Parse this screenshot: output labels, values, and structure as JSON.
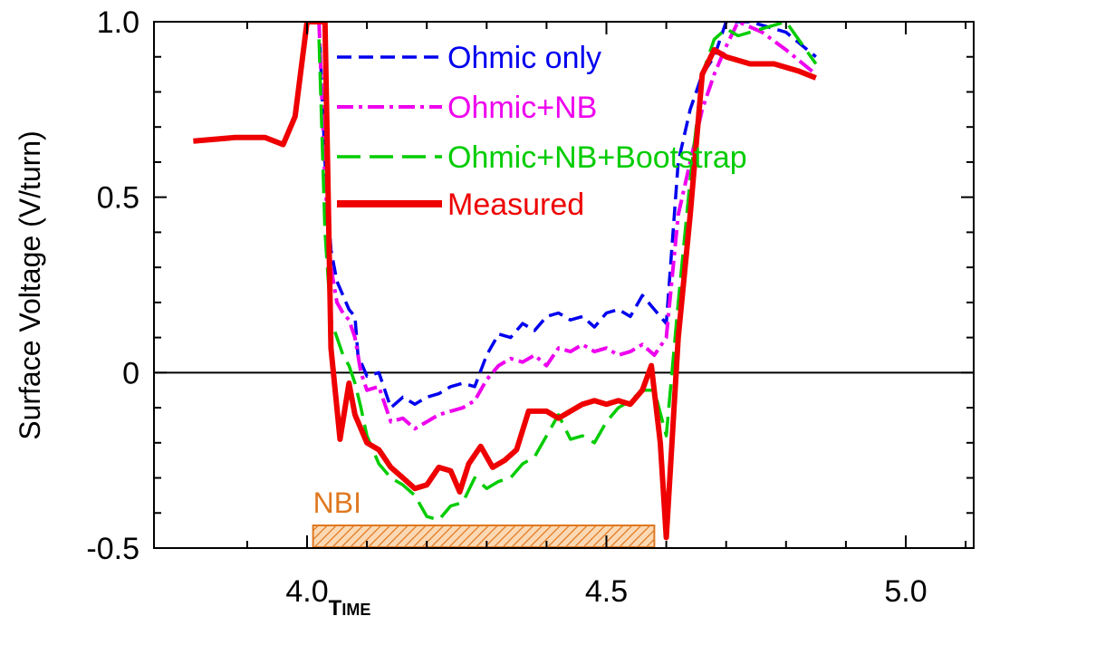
{
  "chart_data": {
    "type": "line",
    "title": "",
    "xlabel": "TIME",
    "ylabel": "Surface Voltage (V/turn)",
    "xlim": [
      3.81,
      5.0
    ],
    "ylim": [
      -0.5,
      1.0
    ],
    "x_ticks": [
      {
        "value": 4.0,
        "label": "4.0"
      },
      {
        "value": 4.5,
        "label": "4.5"
      },
      {
        "value": 5.0,
        "label": "5.0"
      }
    ],
    "y_ticks": [
      {
        "value": 1.0,
        "label": "1.0"
      },
      {
        "value": 0.5,
        "label": "0.5"
      },
      {
        "value": 0.0,
        "label": "0"
      },
      {
        "value": -0.5,
        "label": "-0.5"
      }
    ],
    "zero_line": true,
    "grid": false,
    "legend_position": "top-center",
    "series": [
      {
        "name": "Ohmic only",
        "color": "#0000ee",
        "style": "dash",
        "points": [
          [
            4.02,
            1.0
          ],
          [
            4.03,
            0.6
          ],
          [
            4.04,
            0.35
          ],
          [
            4.05,
            0.26
          ],
          [
            4.06,
            0.22
          ],
          [
            4.07,
            0.18
          ],
          [
            4.08,
            0.16
          ],
          [
            4.085,
            0.05
          ],
          [
            4.1,
            -0.01
          ],
          [
            4.12,
            0.0
          ],
          [
            4.14,
            -0.1
          ],
          [
            4.16,
            -0.07
          ],
          [
            4.18,
            -0.09
          ],
          [
            4.2,
            -0.07
          ],
          [
            4.22,
            -0.06
          ],
          [
            4.24,
            -0.04
          ],
          [
            4.26,
            -0.03
          ],
          [
            4.28,
            -0.04
          ],
          [
            4.3,
            0.05
          ],
          [
            4.32,
            0.11
          ],
          [
            4.34,
            0.1
          ],
          [
            4.36,
            0.14
          ],
          [
            4.38,
            0.12
          ],
          [
            4.4,
            0.16
          ],
          [
            4.42,
            0.17
          ],
          [
            4.44,
            0.15
          ],
          [
            4.46,
            0.16
          ],
          [
            4.48,
            0.13
          ],
          [
            4.5,
            0.17
          ],
          [
            4.52,
            0.18
          ],
          [
            4.54,
            0.16
          ],
          [
            4.56,
            0.22
          ],
          [
            4.58,
            0.18
          ],
          [
            4.6,
            0.14
          ],
          [
            4.62,
            0.6
          ],
          [
            4.64,
            0.75
          ],
          [
            4.66,
            0.85
          ],
          [
            4.68,
            0.9
          ],
          [
            4.7,
            1.0
          ],
          [
            4.74,
            1.0
          ],
          [
            4.8,
            0.97
          ],
          [
            4.85,
            0.9
          ]
        ]
      },
      {
        "name": "Ohmic+NB",
        "color": "#ee00ee",
        "style": "dash-dot",
        "points": [
          [
            4.02,
            1.0
          ],
          [
            4.03,
            0.55
          ],
          [
            4.04,
            0.3
          ],
          [
            4.05,
            0.2
          ],
          [
            4.06,
            0.17
          ],
          [
            4.07,
            0.15
          ],
          [
            4.08,
            0.1
          ],
          [
            4.09,
            0.0
          ],
          [
            4.1,
            -0.05
          ],
          [
            4.12,
            -0.04
          ],
          [
            4.14,
            -0.14
          ],
          [
            4.16,
            -0.13
          ],
          [
            4.18,
            -0.16
          ],
          [
            4.2,
            -0.14
          ],
          [
            4.22,
            -0.12
          ],
          [
            4.24,
            -0.11
          ],
          [
            4.26,
            -0.1
          ],
          [
            4.28,
            -0.08
          ],
          [
            4.3,
            -0.02
          ],
          [
            4.32,
            0.02
          ],
          [
            4.34,
            0.04
          ],
          [
            4.36,
            0.03
          ],
          [
            4.38,
            0.05
          ],
          [
            4.4,
            0.02
          ],
          [
            4.42,
            0.07
          ],
          [
            4.44,
            0.06
          ],
          [
            4.46,
            0.08
          ],
          [
            4.48,
            0.06
          ],
          [
            4.5,
            0.07
          ],
          [
            4.52,
            0.05
          ],
          [
            4.54,
            0.06
          ],
          [
            4.56,
            0.08
          ],
          [
            4.58,
            0.05
          ],
          [
            4.6,
            0.1
          ],
          [
            4.62,
            0.45
          ],
          [
            4.64,
            0.6
          ],
          [
            4.66,
            0.75
          ],
          [
            4.68,
            0.85
          ],
          [
            4.7,
            0.93
          ],
          [
            4.72,
            1.0
          ],
          [
            4.76,
            0.97
          ],
          [
            4.8,
            0.92
          ],
          [
            4.85,
            0.85
          ]
        ]
      },
      {
        "name": "Ohmic+NB+Bootstrap",
        "color": "#00cc00",
        "style": "long-dash",
        "points": [
          [
            4.02,
            0.95
          ],
          [
            4.03,
            0.4
          ],
          [
            4.04,
            0.15
          ],
          [
            4.05,
            0.1
          ],
          [
            4.06,
            0.05
          ],
          [
            4.07,
            0.02
          ],
          [
            4.08,
            -0.03
          ],
          [
            4.09,
            -0.1
          ],
          [
            4.1,
            -0.18
          ],
          [
            4.12,
            -0.26
          ],
          [
            4.14,
            -0.3
          ],
          [
            4.16,
            -0.32
          ],
          [
            4.18,
            -0.35
          ],
          [
            4.2,
            -0.41
          ],
          [
            4.22,
            -0.42
          ],
          [
            4.24,
            -0.38
          ],
          [
            4.26,
            -0.37
          ],
          [
            4.28,
            -0.3
          ],
          [
            4.3,
            -0.33
          ],
          [
            4.32,
            -0.31
          ],
          [
            4.34,
            -0.3
          ],
          [
            4.36,
            -0.26
          ],
          [
            4.38,
            -0.24
          ],
          [
            4.4,
            -0.18
          ],
          [
            4.42,
            -0.12
          ],
          [
            4.44,
            -0.19
          ],
          [
            4.46,
            -0.18
          ],
          [
            4.48,
            -0.2
          ],
          [
            4.5,
            -0.14
          ],
          [
            4.52,
            -0.1
          ],
          [
            4.54,
            -0.08
          ],
          [
            4.56,
            -0.05
          ],
          [
            4.58,
            -0.05
          ],
          [
            4.6,
            -0.18
          ],
          [
            4.62,
            0.2
          ],
          [
            4.64,
            0.55
          ],
          [
            4.66,
            0.85
          ],
          [
            4.68,
            0.95
          ],
          [
            4.7,
            0.98
          ],
          [
            4.72,
            0.96
          ],
          [
            4.76,
            0.98
          ],
          [
            4.8,
            1.0
          ],
          [
            4.85,
            0.88
          ]
        ]
      },
      {
        "name": "Measured",
        "color": "#ee0000",
        "style": "solid",
        "points": [
          [
            3.81,
            0.66
          ],
          [
            3.88,
            0.67
          ],
          [
            3.93,
            0.67
          ],
          [
            3.96,
            0.65
          ],
          [
            3.98,
            0.73
          ],
          [
            4.0,
            1.0
          ],
          [
            4.03,
            1.0
          ],
          [
            4.04,
            0.07
          ],
          [
            4.055,
            -0.19
          ],
          [
            4.07,
            -0.03
          ],
          [
            4.08,
            -0.12
          ],
          [
            4.1,
            -0.2
          ],
          [
            4.12,
            -0.22
          ],
          [
            4.14,
            -0.27
          ],
          [
            4.16,
            -0.3
          ],
          [
            4.18,
            -0.33
          ],
          [
            4.2,
            -0.32
          ],
          [
            4.22,
            -0.27
          ],
          [
            4.24,
            -0.28
          ],
          [
            4.255,
            -0.34
          ],
          [
            4.27,
            -0.26
          ],
          [
            4.29,
            -0.21
          ],
          [
            4.31,
            -0.27
          ],
          [
            4.33,
            -0.25
          ],
          [
            4.35,
            -0.22
          ],
          [
            4.37,
            -0.11
          ],
          [
            4.4,
            -0.11
          ],
          [
            4.42,
            -0.13
          ],
          [
            4.44,
            -0.11
          ],
          [
            4.46,
            -0.09
          ],
          [
            4.48,
            -0.08
          ],
          [
            4.5,
            -0.09
          ],
          [
            4.52,
            -0.08
          ],
          [
            4.54,
            -0.09
          ],
          [
            4.56,
            -0.05
          ],
          [
            4.575,
            0.02
          ],
          [
            4.59,
            -0.2
          ],
          [
            4.6,
            -0.47
          ],
          [
            4.62,
            0.1
          ],
          [
            4.64,
            0.45
          ],
          [
            4.66,
            0.85
          ],
          [
            4.68,
            0.92
          ],
          [
            4.7,
            0.9
          ],
          [
            4.74,
            0.88
          ],
          [
            4.78,
            0.88
          ],
          [
            4.82,
            0.86
          ],
          [
            4.85,
            0.84
          ]
        ]
      }
    ],
    "annotations": [
      {
        "text": "NBI",
        "color": "#e07820",
        "span": [
          4.01,
          4.58
        ],
        "kind": "hatched-band"
      }
    ]
  }
}
